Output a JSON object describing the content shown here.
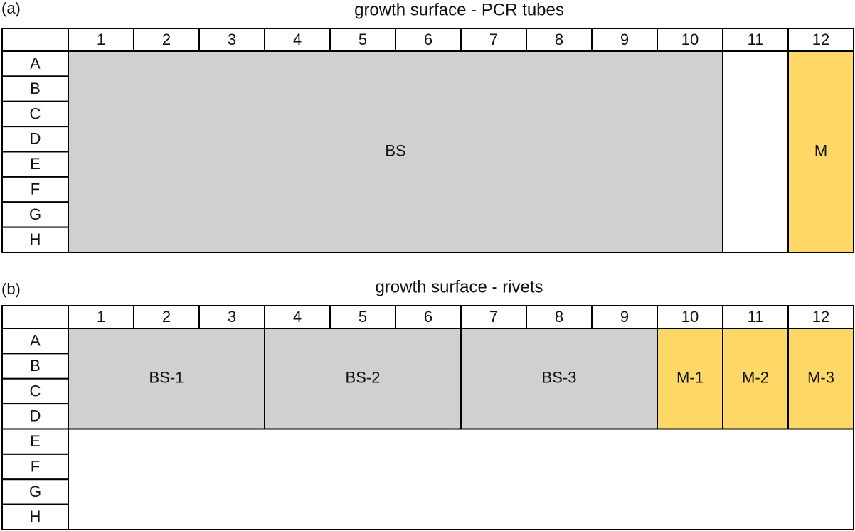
{
  "panels": [
    {
      "label": "(a)",
      "title": "growth surface - PCR tubes",
      "columns": [
        "1",
        "2",
        "3",
        "4",
        "5",
        "6",
        "7",
        "8",
        "9",
        "10",
        "11",
        "12"
      ],
      "rows": [
        "A",
        "B",
        "C",
        "D",
        "E",
        "F",
        "G",
        "H"
      ],
      "regions": [
        {
          "label": "BS",
          "col_start": "1",
          "col_end": "10",
          "row_start": "A",
          "row_end": "H",
          "color": "#d1cfd0"
        },
        {
          "label": "M",
          "col_start": "12",
          "col_end": "12",
          "row_start": "A",
          "row_end": "H",
          "color": "#fdd867"
        }
      ]
    },
    {
      "label": "(b)",
      "title": "growth surface - rivets",
      "columns": [
        "1",
        "2",
        "3",
        "4",
        "5",
        "6",
        "7",
        "8",
        "9",
        "10",
        "11",
        "12"
      ],
      "rows": [
        "A",
        "B",
        "C",
        "D",
        "E",
        "F",
        "G",
        "H"
      ],
      "regions": [
        {
          "label": "BS-1",
          "col_start": "1",
          "col_end": "3",
          "row_start": "A",
          "row_end": "D",
          "color": "#d1cfd0"
        },
        {
          "label": "BS-2",
          "col_start": "4",
          "col_end": "6",
          "row_start": "A",
          "row_end": "D",
          "color": "#d1cfd0"
        },
        {
          "label": "BS-3",
          "col_start": "7",
          "col_end": "9",
          "row_start": "A",
          "row_end": "D",
          "color": "#d1cfd0"
        },
        {
          "label": "M-1",
          "col_start": "10",
          "col_end": "10",
          "row_start": "A",
          "row_end": "D",
          "color": "#fdd867"
        },
        {
          "label": "M-2",
          "col_start": "11",
          "col_end": "11",
          "row_start": "A",
          "row_end": "D",
          "color": "#fdd867"
        },
        {
          "label": "M-3",
          "col_start": "12",
          "col_end": "12",
          "row_start": "A",
          "row_end": "D",
          "color": "#fdd867"
        }
      ]
    }
  ]
}
